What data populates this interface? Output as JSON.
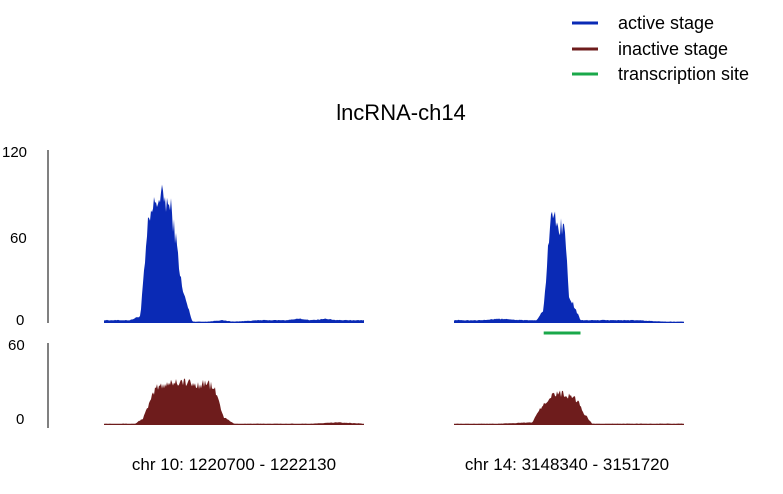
{
  "chart_data": {
    "type": "area",
    "title": "lncRNA-ch14",
    "legend": {
      "placement": "top-right",
      "entries": [
        {
          "label": "active stage",
          "color": "#0a2ab5"
        },
        {
          "label": "inactive stage",
          "color": "#6e1c1c"
        },
        {
          "label": "transcription site",
          "color": "#1aa84a"
        }
      ]
    },
    "regions": [
      {
        "label": "chr 10: 1220700 - 1222130"
      },
      {
        "label": "chr 14: 3148340 - 3151720"
      }
    ],
    "tracks": [
      {
        "name": "active stage",
        "color": "#0a2ab5",
        "ylim": [
          0,
          120
        ],
        "yticks": [
          "120",
          "60",
          "0"
        ],
        "regions": [
          {
            "x": [
              0,
              0.1,
              0.14,
              0.17,
              0.2,
              0.23,
              0.26,
              0.28,
              0.3,
              0.34,
              0.4,
              0.45,
              0.5,
              0.6,
              0.7,
              0.75,
              0.8,
              0.85,
              0.9,
              1.0
            ],
            "values": [
              2,
              2,
              5,
              70,
              88,
              90,
              80,
              55,
              25,
              1,
              1,
              2,
              1,
              2,
              2,
              3,
              2,
              3,
              2,
              2
            ]
          },
          {
            "x": [
              0,
              0.1,
              0.2,
              0.3,
              0.36,
              0.39,
              0.42,
              0.45,
              0.48,
              0.5,
              0.55,
              0.6,
              0.7,
              0.8,
              0.9,
              1.0
            ],
            "values": [
              2,
              2,
              3,
              2,
              2,
              10,
              78,
              70,
              70,
              20,
              2,
              2,
              2,
              2,
              1,
              1
            ]
          }
        ]
      },
      {
        "name": "inactive stage",
        "color": "#6e1c1c",
        "ylim": [
          0,
          60
        ],
        "yticks": [
          "60",
          "0"
        ],
        "regions": [
          {
            "x": [
              0,
              0.12,
              0.15,
              0.2,
              0.25,
              0.3,
              0.35,
              0.4,
              0.43,
              0.46,
              0.5,
              0.6,
              0.7,
              0.8,
              0.9,
              1.0
            ],
            "values": [
              1,
              1,
              5,
              28,
              32,
              33,
              30,
              32,
              25,
              6,
              1,
              1,
              1,
              1,
              2,
              1
            ]
          },
          {
            "x": [
              0,
              0.2,
              0.34,
              0.38,
              0.42,
              0.46,
              0.5,
              0.54,
              0.56,
              0.6,
              0.7,
              0.8,
              1.0
            ],
            "values": [
              1,
              1,
              2,
              14,
              22,
              24,
              22,
              18,
              10,
              1,
              1,
              1,
              1
            ]
          }
        ]
      }
    ],
    "transcription_site": {
      "region": 1,
      "x": [
        0.39,
        0.55
      ]
    }
  }
}
